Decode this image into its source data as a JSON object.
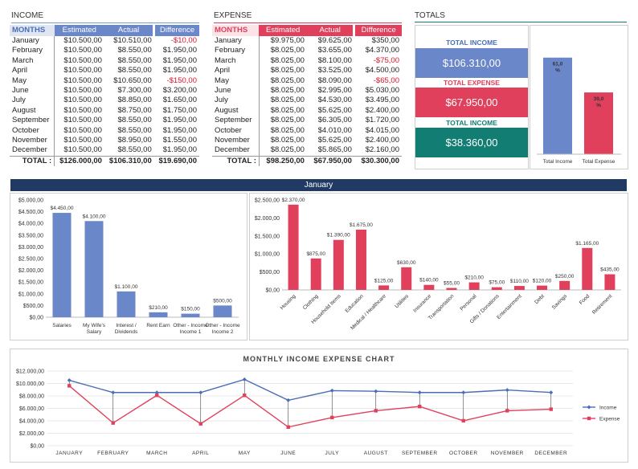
{
  "income": {
    "title": "INCOME",
    "headers": [
      "MONTHS",
      "Estimated",
      "Actual",
      "Difference"
    ],
    "rows": [
      [
        "January",
        "$10.500,00",
        "$10.510,00",
        "-$10,00"
      ],
      [
        "February",
        "$10.500,00",
        "$8.550,00",
        "$1.950,00"
      ],
      [
        "March",
        "$10.500,00",
        "$8.550,00",
        "$1.950,00"
      ],
      [
        "April",
        "$10.500,00",
        "$8.550,00",
        "$1.950,00"
      ],
      [
        "May",
        "$10.500,00",
        "$10.650,00",
        "-$150,00"
      ],
      [
        "June",
        "$10.500,00",
        "$7.300,00",
        "$3.200,00"
      ],
      [
        "July",
        "$10.500,00",
        "$8.850,00",
        "$1.650,00"
      ],
      [
        "August",
        "$10.500,00",
        "$8.750,00",
        "$1.750,00"
      ],
      [
        "September",
        "$10.500,00",
        "$8.550,00",
        "$1.950,00"
      ],
      [
        "October",
        "$10.500,00",
        "$8.550,00",
        "$1.950,00"
      ],
      [
        "November",
        "$10.500,00",
        "$8.950,00",
        "$1.550,00"
      ],
      [
        "December",
        "$10.500,00",
        "$8.550,00",
        "$1.950,00"
      ]
    ],
    "total": [
      "TOTAL :",
      "$126.000,00",
      "$106.310,00",
      "$19.690,00"
    ]
  },
  "expense": {
    "title": "EXPENSE",
    "headers": [
      "MONTHS",
      "Estimated",
      "Actual",
      "Difference"
    ],
    "rows": [
      [
        "January",
        "$9.975,00",
        "$9.625,00",
        "$350,00"
      ],
      [
        "February",
        "$8.025,00",
        "$3.655,00",
        "$4.370,00"
      ],
      [
        "March",
        "$8.025,00",
        "$8.100,00",
        "-$75,00"
      ],
      [
        "April",
        "$8.025,00",
        "$3.525,00",
        "$4.500,00"
      ],
      [
        "May",
        "$8.025,00",
        "$8.090,00",
        "-$65,00"
      ],
      [
        "June",
        "$8.025,00",
        "$2.995,00",
        "$5.030,00"
      ],
      [
        "July",
        "$8.025,00",
        "$4.530,00",
        "$3.495,00"
      ],
      [
        "August",
        "$8.025,00",
        "$5.625,00",
        "$2.400,00"
      ],
      [
        "September",
        "$8.025,00",
        "$6.305,00",
        "$1.720,00"
      ],
      [
        "October",
        "$8.025,00",
        "$4.010,00",
        "$4.015,00"
      ],
      [
        "November",
        "$8.025,00",
        "$5.625,00",
        "$2.400,00"
      ],
      [
        "December",
        "$8.025,00",
        "$5.865,00",
        "$2.160,00"
      ]
    ],
    "total": [
      "TOTAL :",
      "$98.250,00",
      "$67.950,00",
      "$30.300,00"
    ]
  },
  "totals": {
    "title": "TOTALS",
    "income_label": "TOTAL INCOME",
    "income_value": "$106.310,00",
    "expense_label": "TOTAL EXPENSE",
    "expense_value": "$67.950,00",
    "net_label": "TOTAL INCOME",
    "net_value": "$38.360,00"
  },
  "month_banner": "January",
  "colors": {
    "blue": "#6a87c9",
    "red": "#e0405c",
    "teal": "#127d73",
    "navy": "#203a63"
  },
  "chart_data": [
    {
      "type": "bar",
      "categories": [
        "Total Income",
        "Total Expense"
      ],
      "values": [
        61.0,
        39.0
      ],
      "labels": [
        "61,0 %",
        "39,0 %"
      ],
      "colors": [
        "#6a87c9",
        "#e0405c"
      ]
    },
    {
      "type": "bar",
      "categories": [
        "Salaries",
        "My Wife's Salary",
        "Interest / Dividends",
        "Rent Earn",
        "Other - Income 1",
        "Other - Income 2"
      ],
      "values": [
        4450,
        4100,
        1100,
        210,
        150,
        500
      ],
      "labels": [
        "$4.450,00",
        "$4.100,00",
        "$1.100,00",
        "$210,00",
        "$150,00",
        "$500,00"
      ],
      "ylim": [
        0,
        5000
      ],
      "yticks": [
        "$0,00",
        "$500,00",
        "$1.000,00",
        "$1.500,00",
        "$2.000,00",
        "$2.500,00",
        "$3.000,00",
        "$3.500,00",
        "$4.000,00",
        "$4.500,00",
        "$5.000,00"
      ],
      "color": "#6a87c9"
    },
    {
      "type": "bar",
      "categories": [
        "Housing",
        "Clothing",
        "Household Items",
        "Education",
        "Medical / Healthcare",
        "Utilities",
        "Insurance",
        "Transportation",
        "Personal",
        "Gifts / Donations",
        "Entertainment",
        "Debt",
        "Savings",
        "Food",
        "Retirement"
      ],
      "values": [
        2370,
        875,
        1390,
        1675,
        125,
        630,
        140,
        55,
        210,
        75,
        110,
        120,
        250,
        1165,
        435
      ],
      "labels": [
        "$2.370,00",
        "$875,00",
        "$1.390,00",
        "$1.675,00",
        "$125,00",
        "$630,00",
        "$140,00",
        "$55,00",
        "$210,00",
        "$75,00",
        "$110,00",
        "$120,00",
        "$250,00",
        "$1.165,00",
        "$435,00"
      ],
      "ylim": [
        0,
        2500
      ],
      "yticks": [
        "$0,00",
        "$500,00",
        "$1.000,00",
        "$1.500,00",
        "$2.000,00",
        "$2.500,00"
      ],
      "color": "#e0405c"
    },
    {
      "type": "line",
      "title": "MONTHLY INCOME EXPENSE CHART",
      "categories": [
        "JANUARY",
        "FEBRUARY",
        "MARCH",
        "APRIL",
        "MAY",
        "JUNE",
        "JULY",
        "AUGUST",
        "SEPTEMBER",
        "OCTOBER",
        "NOVEMBER",
        "DECEMBER"
      ],
      "series": [
        {
          "name": "Income",
          "values": [
            10510,
            8550,
            8550,
            8550,
            10650,
            7300,
            8850,
            8750,
            8550,
            8550,
            8950,
            8550
          ],
          "color": "#4a6db5"
        },
        {
          "name": "Expense",
          "values": [
            9625,
            3655,
            8100,
            3525,
            8090,
            2995,
            4530,
            5625,
            6305,
            4010,
            5625,
            5865
          ],
          "color": "#e0405c"
        }
      ],
      "ylim": [
        0,
        12000
      ],
      "yticks": [
        "$0,00",
        "$2.000,00",
        "$4.000,00",
        "$6.000,00",
        "$8.000,00",
        "$10.000,00",
        "$12.000,00"
      ],
      "legend": "right"
    }
  ]
}
